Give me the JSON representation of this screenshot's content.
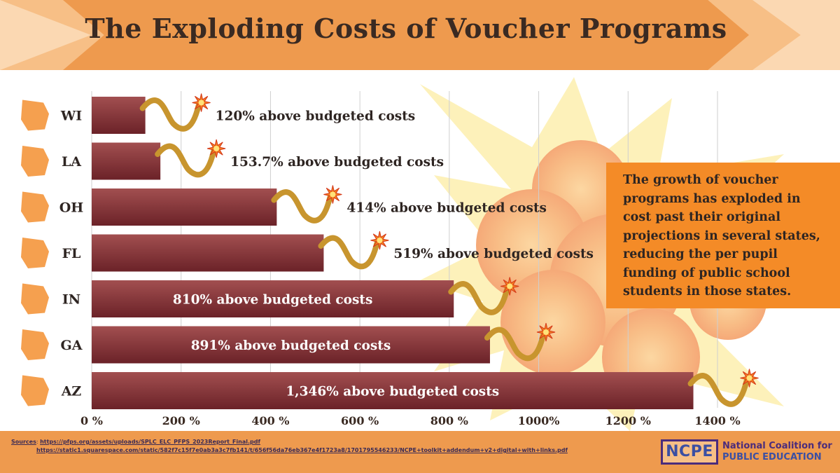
{
  "title": "The Exploding Costs of Voucher Programs",
  "callout": "The growth of voucher programs has exploded in cost past their original projections in several states, reducing the per pupil funding of public school students in those states.",
  "colors": {
    "banner": "#ee9a4e",
    "banner_light": "#fbd8b2",
    "bar_top": "#a24f50",
    "bar_bottom": "#6b2228",
    "fuse": "#c8952e",
    "spark": "#f47d1f",
    "state_icon": "#f5a04f",
    "callout_bg": "#f48b27",
    "footer": "#ee9a4e"
  },
  "chart_data": {
    "type": "bar",
    "orientation": "horizontal",
    "categories": [
      "WI",
      "LA",
      "OH",
      "FL",
      "IN",
      "GA",
      "AZ"
    ],
    "values": [
      120,
      153.7,
      414,
      519,
      810,
      891,
      1346
    ],
    "data_labels": [
      "120% above budgeted costs",
      "153.7% above budgeted costs",
      "414% above budgeted costs",
      "519% above budgeted costs",
      "810% above budgeted costs",
      "891% above budgeted costs",
      "1,346% above budgeted costs"
    ],
    "label_inside": [
      false,
      false,
      false,
      false,
      true,
      true,
      true
    ],
    "x_ticks": [
      "0 %",
      "200 %",
      "400 %",
      "600 %",
      "800 %",
      "1000%",
      "1200 %",
      "1400 %"
    ],
    "xlim": [
      0,
      1400
    ],
    "grid": true,
    "xlabel": "",
    "ylabel": ""
  },
  "footer": {
    "sources_label": "Sources",
    "source_1": "https://pfps.org/assets/uploads/SPLC_ELC_PFPS_2023Report_Final.pdf",
    "source_2": "https://static1.squarespace.com/static/582f7c15f7e0ab3a3c7fb141/t/656f56da76eb367e4f1723a8/1701795546233/NCPE+toolkit+addendum+v2+digital+with+links.pdf",
    "logo_abbr": "NCPE",
    "logo_line1": "National Coalition for",
    "logo_line2": "PUBLIC EDUCATION"
  }
}
